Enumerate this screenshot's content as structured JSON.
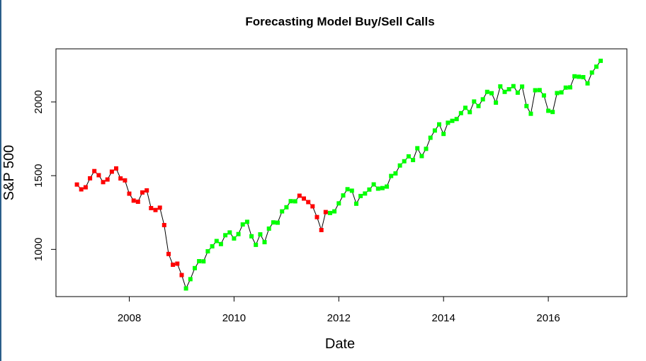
{
  "chart_data": {
    "type": "line",
    "title": "Forecasting Model Buy/Sell Calls",
    "xlabel": "Date",
    "ylabel": "S&P 500",
    "x_ticks": [
      2008,
      2010,
      2012,
      2014,
      2016
    ],
    "y_ticks": [
      1000,
      1500,
      2000
    ],
    "xlim": [
      2006.6,
      2017.5
    ],
    "ylim": [
      680,
      2360
    ],
    "grid": false,
    "colors": {
      "sell": "#ff0000",
      "buy": "#00ff00",
      "line": "#000000"
    },
    "point_dates": [
      "2007-01",
      "2007-02",
      "2007-03",
      "2007-04",
      "2007-05",
      "2007-06",
      "2007-07",
      "2007-08",
      "2007-09",
      "2007-10",
      "2007-11",
      "2007-12",
      "2008-01",
      "2008-02",
      "2008-03",
      "2008-04",
      "2008-05",
      "2008-06",
      "2008-07",
      "2008-08",
      "2008-09",
      "2008-10",
      "2008-11",
      "2008-12",
      "2009-01",
      "2009-02",
      "2009-03",
      "2009-04",
      "2009-05",
      "2009-06",
      "2009-07",
      "2009-08",
      "2009-09",
      "2009-10",
      "2009-11",
      "2009-12",
      "2010-01",
      "2010-02",
      "2010-03",
      "2010-04",
      "2010-05",
      "2010-06",
      "2010-07",
      "2010-08",
      "2010-09",
      "2010-10",
      "2010-11",
      "2010-12",
      "2011-01",
      "2011-02",
      "2011-03",
      "2011-04",
      "2011-05",
      "2011-06",
      "2011-07",
      "2011-08",
      "2011-09",
      "2011-10",
      "2011-11",
      "2011-12",
      "2012-01",
      "2012-02",
      "2012-03",
      "2012-04",
      "2012-05",
      "2012-06",
      "2012-07",
      "2012-08",
      "2012-09",
      "2012-10",
      "2012-11",
      "2012-12",
      "2013-01",
      "2013-02",
      "2013-03",
      "2013-04",
      "2013-05",
      "2013-06",
      "2013-07",
      "2013-08",
      "2013-09",
      "2013-10",
      "2013-11",
      "2013-12",
      "2014-01",
      "2014-02",
      "2014-03",
      "2014-04",
      "2014-05",
      "2014-06",
      "2014-07",
      "2014-08",
      "2014-09",
      "2014-10",
      "2014-11",
      "2014-12",
      "2015-01",
      "2015-02",
      "2015-03",
      "2015-04",
      "2015-05",
      "2015-06",
      "2015-07",
      "2015-08",
      "2015-09",
      "2015-10",
      "2015-11",
      "2015-12",
      "2016-01",
      "2016-02",
      "2016-03",
      "2016-04",
      "2016-05",
      "2016-06",
      "2016-07",
      "2016-08",
      "2016-09",
      "2016-10",
      "2016-11",
      "2016-12",
      "2017-01"
    ],
    "series": [
      {
        "values": [
          1440,
          1407,
          1421,
          1482,
          1531,
          1503,
          1456,
          1474,
          1527,
          1549,
          1481,
          1468,
          1378,
          1331,
          1323,
          1386,
          1400,
          1280,
          1267,
          1283,
          1165,
          969,
          896,
          903,
          826,
          735,
          798,
          873,
          920,
          919,
          987,
          1021,
          1057,
          1036,
          1096,
          1115,
          1074,
          1104,
          1169,
          1187,
          1089,
          1031,
          1102,
          1049,
          1141,
          1183,
          1181,
          1258,
          1286,
          1327,
          1326,
          1364,
          1345,
          1321,
          1292,
          1219,
          1131,
          1253,
          1247,
          1258,
          1312,
          1366,
          1408,
          1398,
          1310,
          1362,
          1379,
          1406,
          1441,
          1412,
          1416,
          1426,
          1498,
          1515,
          1569,
          1598,
          1631,
          1606,
          1686,
          1633,
          1682,
          1757,
          1806,
          1848,
          1783,
          1859,
          1872,
          1884,
          1924,
          1960,
          1931,
          2003,
          1972,
          2018,
          2068,
          2059,
          1995,
          2105,
          2068,
          2086,
          2107,
          2063,
          2104,
          1972,
          1920,
          2079,
          2080,
          2044,
          1940,
          1932,
          2060,
          2065,
          2097,
          2099,
          2174,
          2171,
          2168,
          2126,
          2199,
          2239,
          2279
        ],
        "signals": [
          "sell",
          "sell",
          "sell",
          "sell",
          "sell",
          "sell",
          "sell",
          "sell",
          "sell",
          "sell",
          "sell",
          "sell",
          "sell",
          "sell",
          "sell",
          "sell",
          "sell",
          "sell",
          "sell",
          "sell",
          "sell",
          "sell",
          "sell",
          "sell",
          "sell",
          "buy",
          "buy",
          "buy",
          "buy",
          "buy",
          "buy",
          "buy",
          "buy",
          "buy",
          "buy",
          "buy",
          "buy",
          "buy",
          "buy",
          "buy",
          "buy",
          "buy",
          "buy",
          "buy",
          "buy",
          "buy",
          "buy",
          "buy",
          "buy",
          "buy",
          "buy",
          "sell",
          "sell",
          "sell",
          "sell",
          "sell",
          "sell",
          "sell",
          "buy",
          "buy",
          "buy",
          "buy",
          "buy",
          "buy",
          "buy",
          "buy",
          "buy",
          "buy",
          "buy",
          "buy",
          "buy",
          "buy",
          "buy",
          "buy",
          "buy",
          "buy",
          "buy",
          "buy",
          "buy",
          "buy",
          "buy",
          "buy",
          "buy",
          "buy",
          "buy",
          "buy",
          "buy",
          "buy",
          "buy",
          "buy",
          "buy",
          "buy",
          "buy",
          "buy",
          "buy",
          "buy",
          "buy",
          "buy",
          "buy",
          "buy",
          "buy",
          "buy",
          "buy",
          "buy",
          "buy",
          "buy",
          "buy",
          "buy",
          "buy",
          "buy",
          "buy",
          "buy",
          "buy",
          "buy",
          "buy",
          "buy",
          "buy",
          "buy",
          "buy",
          "buy",
          "buy"
        ]
      }
    ]
  }
}
